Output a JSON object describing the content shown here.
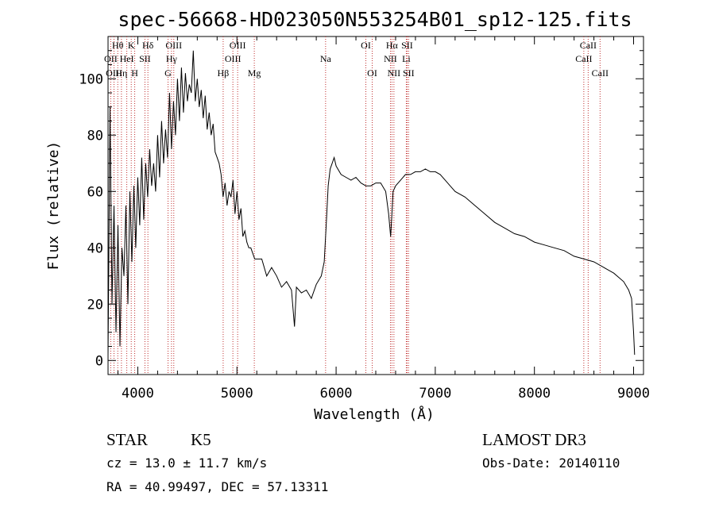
{
  "chart_data": {
    "type": "line",
    "title": "spec-56668-HD023050N553254B01_sp12-125.fits",
    "xlabel": "Wavelength (Å)",
    "ylabel": "Flux (relative)",
    "xlim": [
      3700,
      9100
    ],
    "ylim": [
      -5,
      115
    ],
    "xticks": [
      4000,
      5000,
      6000,
      7000,
      8000,
      9000
    ],
    "yticks": [
      0,
      20,
      40,
      60,
      80,
      100
    ],
    "grid": false,
    "series": [
      {
        "x": [
          3700,
          3720,
          3740,
          3760,
          3780,
          3800,
          3820,
          3840,
          3860,
          3880,
          3900,
          3920,
          3940,
          3960,
          3980,
          4000,
          4020,
          4040,
          4060,
          4080,
          4100,
          4120,
          4140,
          4160,
          4180,
          4200,
          4220,
          4240,
          4260,
          4280,
          4300,
          4320,
          4340,
          4360,
          4380,
          4400,
          4420,
          4440,
          4460,
          4480,
          4500,
          4520,
          4540,
          4560,
          4580,
          4600,
          4620,
          4640,
          4660,
          4680,
          4700,
          4720,
          4740,
          4760,
          4780,
          4800,
          4820,
          4840,
          4860,
          4880,
          4900,
          4920,
          4940,
          4960,
          4980,
          5000,
          5020,
          5040,
          5060,
          5080,
          5100,
          5120,
          5140,
          5160,
          5180,
          5200,
          5250,
          5300,
          5350,
          5400,
          5450,
          5500,
          5550,
          5580,
          5600,
          5650,
          5700,
          5750,
          5800,
          5850,
          5880,
          5900,
          5920,
          5940,
          5960,
          5980,
          6000,
          6050,
          6100,
          6150,
          6200,
          6250,
          6300,
          6350,
          6400,
          6450,
          6500,
          6530,
          6550,
          6563,
          6575,
          6600,
          6650,
          6700,
          6750,
          6800,
          6850,
          6900,
          6950,
          7000,
          7050,
          7100,
          7150,
          7200,
          7300,
          7400,
          7500,
          7600,
          7700,
          7800,
          7900,
          8000,
          8100,
          8200,
          8300,
          8400,
          8500,
          8600,
          8700,
          8800,
          8900,
          8950,
          8980,
          9000,
          9010
        ],
        "y": [
          2,
          90,
          20,
          55,
          10,
          48,
          5,
          40,
          30,
          55,
          20,
          60,
          35,
          62,
          40,
          65,
          48,
          72,
          50,
          70,
          58,
          75,
          62,
          70,
          60,
          80,
          65,
          85,
          70,
          82,
          72,
          95,
          75,
          92,
          80,
          100,
          85,
          104,
          88,
          102,
          92,
          98,
          95,
          110,
          92,
          100,
          90,
          96,
          86,
          94,
          82,
          88,
          80,
          84,
          74,
          72,
          70,
          66,
          58,
          63,
          55,
          60,
          58,
          64,
          52,
          60,
          50,
          54,
          44,
          46,
          42,
          40,
          40,
          38,
          36,
          36,
          36,
          30,
          33,
          30,
          26,
          28,
          25,
          12,
          26,
          24,
          25,
          22,
          27,
          30,
          35,
          48,
          62,
          68,
          70,
          72,
          69,
          66,
          65,
          64,
          65,
          63,
          62,
          62,
          63,
          63,
          60,
          52,
          44,
          52,
          60,
          62,
          64,
          66,
          66,
          67,
          67,
          68,
          67,
          67,
          66,
          64,
          62,
          60,
          58,
          55,
          52,
          49,
          47,
          45,
          44,
          42,
          41,
          40,
          39,
          37,
          36,
          35,
          33,
          31,
          28,
          25,
          22,
          10,
          2
        ]
      }
    ],
    "lines": [
      {
        "label": "Hθ",
        "x": 3798,
        "row": 1
      },
      {
        "label": "OII",
        "x": 3727,
        "row": 2
      },
      {
        "label": "OIII",
        "x": 3760,
        "row": 3
      },
      {
        "label": "HeI",
        "x": 3889,
        "row": 2
      },
      {
        "label": "Hη",
        "x": 3835,
        "row": 3
      },
      {
        "label": "K",
        "x": 3934,
        "row": 1
      },
      {
        "label": "SII",
        "x": 4072,
        "row": 2
      },
      {
        "label": "H",
        "x": 3969,
        "row": 3
      },
      {
        "label": "Hδ",
        "x": 4102,
        "row": 1
      },
      {
        "label": "OIII",
        "x": 4363,
        "row": 1
      },
      {
        "label": "Hγ",
        "x": 4340,
        "row": 2
      },
      {
        "label": "G",
        "x": 4305,
        "row": 3
      },
      {
        "label": "Hβ",
        "x": 4861,
        "row": 3
      },
      {
        "label": "OIII",
        "x": 5007,
        "row": 1
      },
      {
        "label": "OIII",
        "x": 4959,
        "row": 2
      },
      {
        "label": "Mg",
        "x": 5175,
        "row": 3
      },
      {
        "label": "Na",
        "x": 5894,
        "row": 2
      },
      {
        "label": "OI",
        "x": 6300,
        "row": 1
      },
      {
        "label": "OI",
        "x": 6364,
        "row": 3
      },
      {
        "label": "Hα",
        "x": 6563,
        "row": 1
      },
      {
        "label": "SII",
        "x": 6716,
        "row": 1
      },
      {
        "label": "NII",
        "x": 6548,
        "row": 2
      },
      {
        "label": "Li",
        "x": 6708,
        "row": 2
      },
      {
        "label": "NII",
        "x": 6583,
        "row": 3
      },
      {
        "label": "SII",
        "x": 6731,
        "row": 3
      },
      {
        "label": "CaII",
        "x": 8542,
        "row": 1
      },
      {
        "label": "CaII",
        "x": 8498,
        "row": 2
      },
      {
        "label": "CaII",
        "x": 8662,
        "row": 3
      }
    ],
    "line_color": "#c03030"
  },
  "info": {
    "class": "STAR",
    "subclass": "K5",
    "cz": "cz = 13.0 ± 11.7 km/s",
    "radec": "RA =  40.99497, DEC =  57.13311",
    "survey": "LAMOST DR3",
    "obsdate": "Obs-Date: 20140110"
  }
}
